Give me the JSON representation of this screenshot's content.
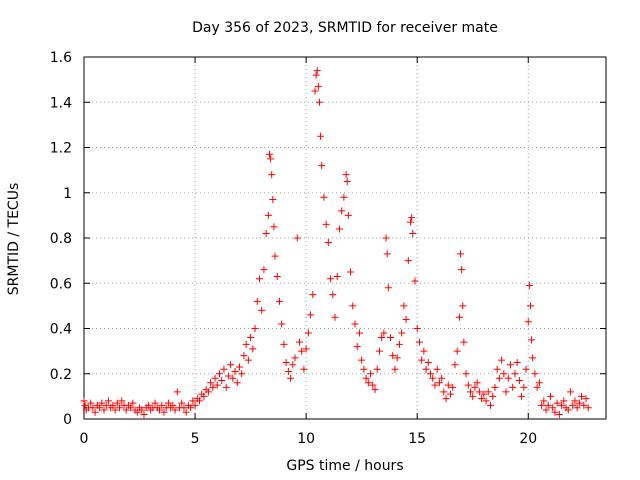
{
  "chart_data": {
    "type": "scatter",
    "title": "Day 356 of 2023, SRMTID for receiver mate",
    "xlabel": "GPS time / hours",
    "ylabel": "SRMTID / TECUs",
    "xlim": [
      0,
      23.5
    ],
    "ylim": [
      0,
      1.6
    ],
    "xticks": [
      0,
      5,
      10,
      15,
      20
    ],
    "yticks": [
      0,
      0.2,
      0.4,
      0.6,
      0.8,
      1,
      1.2,
      1.4,
      1.6
    ],
    "xtick_labels": [
      "0",
      "5",
      "10",
      "15",
      "20"
    ],
    "ytick_labels": [
      "0",
      "0.2",
      "0.4",
      "0.6",
      "0.8",
      "1",
      "1.2",
      "1.4",
      "1.6"
    ],
    "grid": true,
    "marker": "+",
    "series": [
      {
        "name": "SRMTID",
        "color": "#ff0000",
        "points": [
          [
            0.0,
            0.08
          ],
          [
            0.05,
            0.06
          ],
          [
            0.1,
            0.04
          ],
          [
            0.2,
            0.05
          ],
          [
            0.3,
            0.07
          ],
          [
            0.4,
            0.05
          ],
          [
            0.5,
            0.03
          ],
          [
            0.6,
            0.06
          ],
          [
            0.7,
            0.05
          ],
          [
            0.8,
            0.07
          ],
          [
            0.9,
            0.04
          ],
          [
            1.0,
            0.06
          ],
          [
            1.1,
            0.08
          ],
          [
            1.2,
            0.05
          ],
          [
            1.3,
            0.06
          ],
          [
            1.4,
            0.04
          ],
          [
            1.5,
            0.07
          ],
          [
            1.6,
            0.05
          ],
          [
            1.7,
            0.08
          ],
          [
            1.8,
            0.06
          ],
          [
            1.9,
            0.04
          ],
          [
            2.0,
            0.06
          ],
          [
            2.1,
            0.05
          ],
          [
            2.2,
            0.07
          ],
          [
            2.3,
            0.04
          ],
          [
            2.4,
            0.03
          ],
          [
            2.5,
            0.05
          ],
          [
            2.6,
            0.04
          ],
          [
            2.7,
            0.02
          ],
          [
            2.8,
            0.05
          ],
          [
            2.9,
            0.06
          ],
          [
            3.0,
            0.04
          ],
          [
            3.1,
            0.05
          ],
          [
            3.2,
            0.07
          ],
          [
            3.3,
            0.05
          ],
          [
            3.4,
            0.04
          ],
          [
            3.5,
            0.06
          ],
          [
            3.6,
            0.03
          ],
          [
            3.7,
            0.05
          ],
          [
            3.8,
            0.07
          ],
          [
            3.9,
            0.05
          ],
          [
            4.0,
            0.06
          ],
          [
            4.1,
            0.04
          ],
          [
            4.2,
            0.12
          ],
          [
            4.3,
            0.05
          ],
          [
            4.4,
            0.07
          ],
          [
            4.5,
            0.05
          ],
          [
            4.6,
            0.03
          ],
          [
            4.7,
            0.06
          ],
          [
            4.8,
            0.05
          ],
          [
            4.9,
            0.08
          ],
          [
            5.0,
            0.06
          ],
          [
            5.1,
            0.09
          ],
          [
            5.2,
            0.08
          ],
          [
            5.3,
            0.11
          ],
          [
            5.4,
            0.1
          ],
          [
            5.5,
            0.13
          ],
          [
            5.6,
            0.12
          ],
          [
            5.7,
            0.16
          ],
          [
            5.8,
            0.14
          ],
          [
            5.9,
            0.18
          ],
          [
            6.0,
            0.15
          ],
          [
            6.1,
            0.2
          ],
          [
            6.2,
            0.17
          ],
          [
            6.3,
            0.22
          ],
          [
            6.4,
            0.14
          ],
          [
            6.5,
            0.19
          ],
          [
            6.6,
            0.24
          ],
          [
            6.7,
            0.18
          ],
          [
            6.8,
            0.21
          ],
          [
            6.9,
            0.16
          ],
          [
            7.0,
            0.23
          ],
          [
            7.1,
            0.2
          ],
          [
            7.2,
            0.28
          ],
          [
            7.3,
            0.33
          ],
          [
            7.4,
            0.26
          ],
          [
            7.5,
            0.36
          ],
          [
            7.6,
            0.31
          ],
          [
            7.7,
            0.4
          ],
          [
            7.8,
            0.52
          ],
          [
            7.9,
            0.62
          ],
          [
            8.0,
            0.48
          ],
          [
            8.1,
            0.66
          ],
          [
            8.2,
            0.82
          ],
          [
            8.3,
            0.9
          ],
          [
            8.35,
            1.17
          ],
          [
            8.4,
            1.15
          ],
          [
            8.45,
            1.08
          ],
          [
            8.5,
            0.97
          ],
          [
            8.55,
            0.85
          ],
          [
            8.6,
            0.72
          ],
          [
            8.7,
            0.63
          ],
          [
            8.8,
            0.52
          ],
          [
            8.9,
            0.42
          ],
          [
            9.0,
            0.33
          ],
          [
            9.1,
            0.25
          ],
          [
            9.2,
            0.21
          ],
          [
            9.3,
            0.18
          ],
          [
            9.4,
            0.24
          ],
          [
            9.5,
            0.27
          ],
          [
            9.6,
            0.8
          ],
          [
            9.7,
            0.34
          ],
          [
            9.8,
            0.3
          ],
          [
            9.9,
            0.22
          ],
          [
            10.0,
            0.31
          ],
          [
            10.1,
            0.38
          ],
          [
            10.2,
            0.46
          ],
          [
            10.3,
            0.55
          ],
          [
            10.4,
            1.45
          ],
          [
            10.45,
            1.52
          ],
          [
            10.5,
            1.54
          ],
          [
            10.55,
            1.47
          ],
          [
            10.6,
            1.4
          ],
          [
            10.65,
            1.25
          ],
          [
            10.7,
            1.12
          ],
          [
            10.8,
            0.98
          ],
          [
            10.9,
            0.86
          ],
          [
            11.0,
            0.78
          ],
          [
            11.1,
            0.62
          ],
          [
            11.2,
            0.55
          ],
          [
            11.3,
            0.45
          ],
          [
            11.4,
            0.63
          ],
          [
            11.5,
            0.84
          ],
          [
            11.6,
            0.92
          ],
          [
            11.7,
            0.98
          ],
          [
            11.8,
            1.08
          ],
          [
            11.85,
            1.05
          ],
          [
            11.9,
            0.9
          ],
          [
            12.0,
            0.65
          ],
          [
            12.1,
            0.5
          ],
          [
            12.2,
            0.42
          ],
          [
            12.3,
            0.32
          ],
          [
            12.4,
            0.38
          ],
          [
            12.5,
            0.26
          ],
          [
            12.6,
            0.22
          ],
          [
            12.7,
            0.18
          ],
          [
            12.8,
            0.16
          ],
          [
            12.9,
            0.2
          ],
          [
            13.0,
            0.15
          ],
          [
            13.1,
            0.13
          ],
          [
            13.2,
            0.22
          ],
          [
            13.3,
            0.3
          ],
          [
            13.4,
            0.36
          ],
          [
            13.5,
            0.38
          ],
          [
            13.6,
            0.8
          ],
          [
            13.65,
            0.73
          ],
          [
            13.7,
            0.58
          ],
          [
            13.8,
            0.36
          ],
          [
            13.9,
            0.28
          ],
          [
            14.0,
            0.22
          ],
          [
            14.1,
            0.27
          ],
          [
            14.2,
            0.33
          ],
          [
            14.3,
            0.38
          ],
          [
            14.4,
            0.5
          ],
          [
            14.5,
            0.44
          ],
          [
            14.6,
            0.7
          ],
          [
            14.7,
            0.87
          ],
          [
            14.75,
            0.89
          ],
          [
            14.8,
            0.82
          ],
          [
            14.9,
            0.61
          ],
          [
            15.0,
            0.4
          ],
          [
            15.1,
            0.34
          ],
          [
            15.2,
            0.26
          ],
          [
            15.3,
            0.3
          ],
          [
            15.4,
            0.22
          ],
          [
            15.5,
            0.25
          ],
          [
            15.6,
            0.2
          ],
          [
            15.7,
            0.18
          ],
          [
            15.8,
            0.15
          ],
          [
            15.9,
            0.22
          ],
          [
            16.0,
            0.16
          ],
          [
            16.1,
            0.18
          ],
          [
            16.2,
            0.12
          ],
          [
            16.3,
            0.09
          ],
          [
            16.4,
            0.15
          ],
          [
            16.5,
            0.11
          ],
          [
            16.6,
            0.14
          ],
          [
            16.7,
            0.24
          ],
          [
            16.8,
            0.3
          ],
          [
            16.9,
            0.45
          ],
          [
            16.95,
            0.73
          ],
          [
            17.0,
            0.66
          ],
          [
            17.05,
            0.5
          ],
          [
            17.1,
            0.34
          ],
          [
            17.2,
            0.2
          ],
          [
            17.3,
            0.15
          ],
          [
            17.4,
            0.12
          ],
          [
            17.5,
            0.1
          ],
          [
            17.6,
            0.14
          ],
          [
            17.7,
            0.16
          ],
          [
            17.8,
            0.12
          ],
          [
            17.9,
            0.09
          ],
          [
            18.0,
            0.11
          ],
          [
            18.1,
            0.08
          ],
          [
            18.2,
            0.12
          ],
          [
            18.3,
            0.06
          ],
          [
            18.4,
            0.1
          ],
          [
            18.5,
            0.14
          ],
          [
            18.6,
            0.22
          ],
          [
            18.7,
            0.18
          ],
          [
            18.8,
            0.26
          ],
          [
            18.9,
            0.2
          ],
          [
            19.0,
            0.12
          ],
          [
            19.1,
            0.18
          ],
          [
            19.2,
            0.24
          ],
          [
            19.3,
            0.14
          ],
          [
            19.4,
            0.2
          ],
          [
            19.5,
            0.25
          ],
          [
            19.6,
            0.17
          ],
          [
            19.7,
            0.1
          ],
          [
            19.8,
            0.14
          ],
          [
            19.9,
            0.22
          ],
          [
            20.0,
            0.43
          ],
          [
            20.05,
            0.59
          ],
          [
            20.1,
            0.5
          ],
          [
            20.15,
            0.35
          ],
          [
            20.2,
            0.27
          ],
          [
            20.3,
            0.2
          ],
          [
            20.4,
            0.14
          ],
          [
            20.5,
            0.16
          ],
          [
            20.6,
            0.06
          ],
          [
            20.7,
            0.08
          ],
          [
            20.8,
            0.04
          ],
          [
            20.9,
            0.06
          ],
          [
            21.0,
            0.1
          ],
          [
            21.1,
            0.05
          ],
          [
            21.2,
            0.03
          ],
          [
            21.3,
            0.07
          ],
          [
            21.4,
            0.02
          ],
          [
            21.5,
            0.06
          ],
          [
            21.6,
            0.08
          ],
          [
            21.7,
            0.05
          ],
          [
            21.8,
            0.04
          ],
          [
            21.9,
            0.12
          ],
          [
            22.0,
            0.06
          ],
          [
            22.1,
            0.08
          ],
          [
            22.2,
            0.05
          ],
          [
            22.3,
            0.07
          ],
          [
            22.4,
            0.1
          ],
          [
            22.5,
            0.06
          ],
          [
            22.6,
            0.09
          ],
          [
            22.7,
            0.05
          ]
        ]
      }
    ]
  }
}
